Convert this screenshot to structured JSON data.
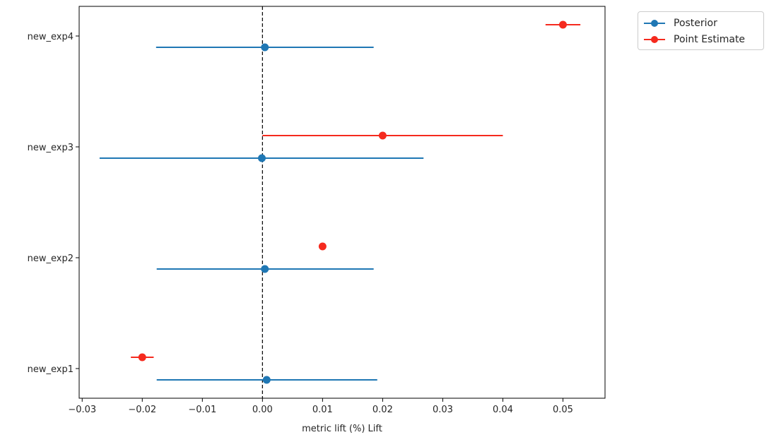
{
  "chart_data": {
    "type": "scatter",
    "title": "",
    "xlabel": "metric lift (%) Lift",
    "ylabel": "",
    "xlim": [
      -0.0305,
      0.057
    ],
    "xticks": [
      -0.03,
      -0.02,
      -0.01,
      0.0,
      0.01,
      0.02,
      0.03,
      0.04,
      0.05
    ],
    "xtick_labels": [
      "−0.03",
      "−0.02",
      "−0.01",
      "0.00",
      "0.01",
      "0.02",
      "0.03",
      "0.04",
      "0.05"
    ],
    "categories": [
      "new_exp1",
      "new_exp2",
      "new_exp3",
      "new_exp4"
    ],
    "reference_line_x": 0.0,
    "legend_position": "outside-top-right",
    "grid": false,
    "series": [
      {
        "name": "Posterior",
        "color": "#1f77b4",
        "offset": "below",
        "points": [
          {
            "category": "new_exp1",
            "x": 0.0007,
            "xmin": -0.0176,
            "xmax": 0.0191
          },
          {
            "category": "new_exp2",
            "x": 0.0004,
            "xmin": -0.0176,
            "xmax": 0.0185
          },
          {
            "category": "new_exp3",
            "x": -0.0001,
            "xmin": -0.0271,
            "xmax": 0.0268
          },
          {
            "category": "new_exp4",
            "x": 0.0004,
            "xmin": -0.0177,
            "xmax": 0.0185
          }
        ]
      },
      {
        "name": "Point Estimate",
        "color": "#f52a1e",
        "offset": "above",
        "points": [
          {
            "category": "new_exp1",
            "x": -0.02,
            "xmin": -0.0219,
            "xmax": -0.0181
          },
          {
            "category": "new_exp2",
            "x": 0.01,
            "xmin": 0.01,
            "xmax": 0.01
          },
          {
            "category": "new_exp3",
            "x": 0.02,
            "xmin": 0.0,
            "xmax": 0.04
          },
          {
            "category": "new_exp4",
            "x": 0.05,
            "xmin": 0.0471,
            "xmax": 0.0529
          }
        ]
      }
    ]
  },
  "legend": {
    "items": [
      {
        "label": "Posterior",
        "color": "#1f77b4"
      },
      {
        "label": "Point Estimate",
        "color": "#f52a1e"
      }
    ]
  }
}
